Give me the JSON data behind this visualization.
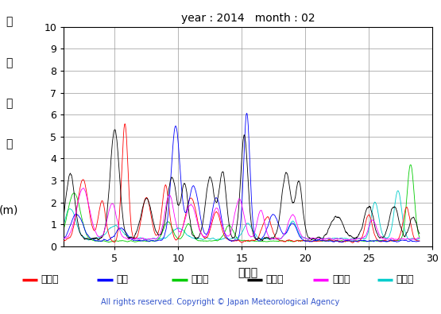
{
  "title": "year : 2014   month : 02",
  "xlabel": "（日）",
  "ylabel_chars": [
    "有",
    "義",
    "波",
    "高",
    "",
    "(m)"
  ],
  "xlim": [
    1,
    30
  ],
  "ylim": [
    0,
    10
  ],
  "yticks": [
    0,
    1,
    2,
    3,
    4,
    5,
    6,
    7,
    8,
    9,
    10
  ],
  "xticks": [
    5,
    10,
    15,
    20,
    25,
    30
  ],
  "legend": [
    {
      "label": "上ノ国",
      "color": "#ff0000"
    },
    {
      "label": "唐桑",
      "color": "#0000ff"
    },
    {
      "label": "石廐崎",
      "color": "#00cc00"
    },
    {
      "label": "経ヶ岸",
      "color": "#000000"
    },
    {
      "label": "生月島",
      "color": "#ff00ff"
    },
    {
      "label": "屋久島",
      "color": "#00cccc"
    }
  ],
  "copyright": "All rights reserved. Copyright © Japan Meteorological Agency",
  "bg_color": "#ffffff",
  "grid_color": "#999999"
}
